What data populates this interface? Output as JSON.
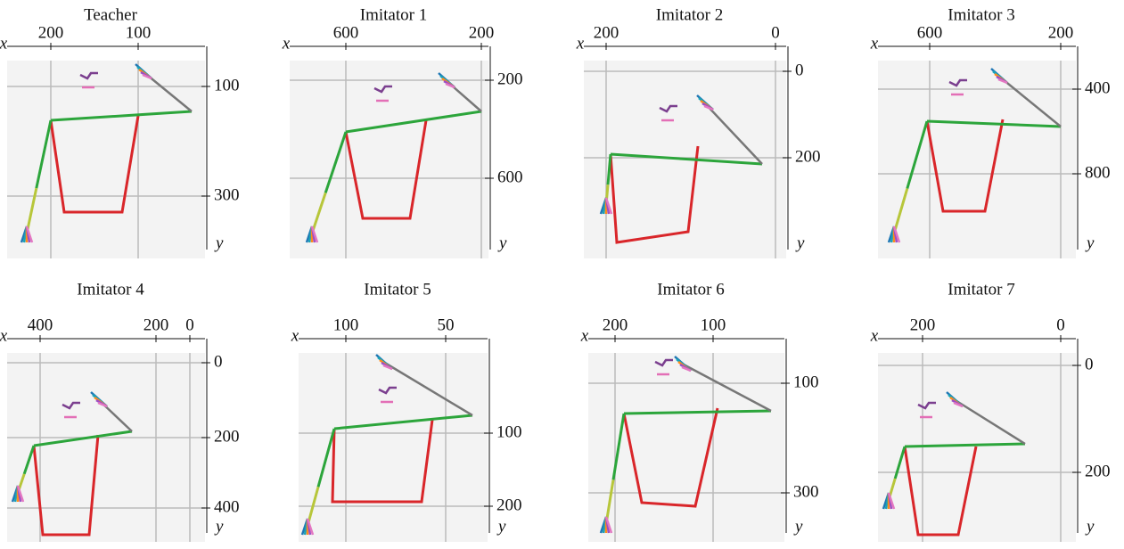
{
  "panels": [
    {
      "title": "Teacher",
      "x_label": "x",
      "y_label": "y",
      "x_ticks": [
        200,
        100
      ],
      "y_ticks": [
        100,
        300
      ]
    },
    {
      "title": "Imitator 1",
      "x_label": "x",
      "y_label": "y",
      "x_ticks": [
        600,
        200
      ],
      "y_ticks": [
        200,
        600
      ]
    },
    {
      "title": "Imitator 2",
      "x_label": "x",
      "y_label": "y",
      "x_ticks": [
        200,
        0
      ],
      "y_ticks": [
        0,
        200
      ]
    },
    {
      "title": "Imitator 3",
      "x_label": "x",
      "y_label": "y",
      "x_ticks": [
        600,
        200
      ],
      "y_ticks": [
        400,
        800
      ]
    },
    {
      "title": "Imitator 4",
      "x_label": "x",
      "y_label": "y",
      "x_ticks": [
        400,
        200,
        0
      ],
      "y_ticks": [
        0,
        200,
        400
      ]
    },
    {
      "title": "Imitator 5",
      "x_label": "x",
      "y_label": "y",
      "x_ticks": [
        100,
        50
      ],
      "y_ticks": [
        100,
        200
      ]
    },
    {
      "title": "Imitator 6",
      "x_label": "x",
      "y_label": "y",
      "x_ticks": [
        200,
        100
      ],
      "y_ticks": [
        100,
        300
      ]
    },
    {
      "title": "Imitator 7",
      "x_label": "x",
      "y_label": "y",
      "x_ticks": [
        200,
        0
      ],
      "y_ticks": [
        0,
        200
      ]
    }
  ]
}
